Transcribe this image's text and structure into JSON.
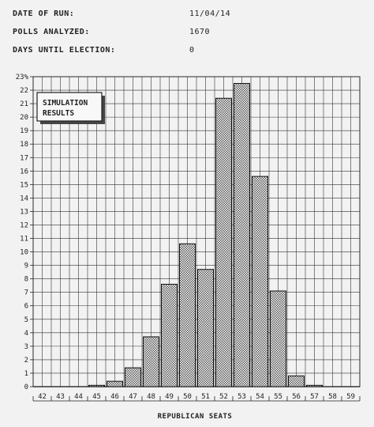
{
  "header": {
    "rows": [
      {
        "label": "DATE OF RUN:",
        "value": "11/04/14"
      },
      {
        "label": "POLLS ANALYZED:",
        "value": "1670"
      },
      {
        "label": "DAYS UNTIL ELECTION:",
        "value": "0"
      }
    ]
  },
  "chart_data": {
    "type": "bar",
    "legend": [
      "SIMULATION",
      "RESULTS"
    ],
    "legend_position": "top-left",
    "xlabel": "REPUBLICAN SEATS",
    "ylabel": "",
    "y_top_label": "23%",
    "ylim": [
      0,
      23
    ],
    "grid": true,
    "categories": [
      "42",
      "43",
      "44",
      "45",
      "46",
      "47",
      "48",
      "49",
      "50",
      "51",
      "52",
      "53",
      "54",
      "55",
      "56",
      "57",
      "58",
      "59"
    ],
    "values": [
      0,
      0,
      0,
      0.1,
      0.4,
      1.4,
      3.7,
      7.6,
      10.6,
      8.7,
      21.4,
      22.5,
      15.6,
      7.1,
      0.8,
      0.1,
      0,
      0
    ]
  }
}
